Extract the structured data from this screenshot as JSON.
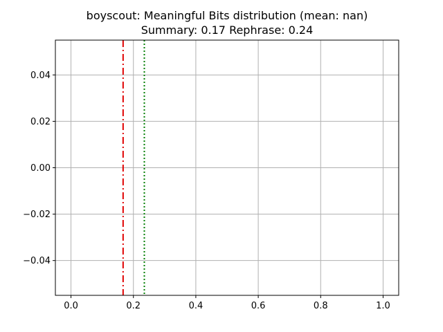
{
  "chart_data": {
    "type": "line",
    "title": "boyscout: Meaningful Bits distribution (mean: nan)",
    "subtitle": "Summary: 0.17 Rephrase: 0.24",
    "xlabel": "",
    "ylabel": "",
    "xlim": [
      -0.05,
      1.05
    ],
    "ylim": [
      -0.055,
      0.055
    ],
    "grid": true,
    "x_ticks": [
      {
        "value": 0.0,
        "label": "0.0"
      },
      {
        "value": 0.2,
        "label": "0.2"
      },
      {
        "value": 0.4,
        "label": "0.4"
      },
      {
        "value": 0.6,
        "label": "0.6"
      },
      {
        "value": 0.8,
        "label": "0.8"
      },
      {
        "value": 1.0,
        "label": "1.0"
      }
    ],
    "y_ticks": [
      {
        "value": -0.04,
        "label": "−0.04"
      },
      {
        "value": -0.02,
        "label": "−0.02"
      },
      {
        "value": 0.0,
        "label": "0.00"
      },
      {
        "value": 0.02,
        "label": "0.02"
      },
      {
        "value": 0.04,
        "label": "0.04"
      }
    ],
    "vlines": [
      {
        "x": 0.167,
        "color": "#e00000",
        "style": "dashdot"
      },
      {
        "x": 0.235,
        "color": "#008000",
        "style": "dotted"
      }
    ],
    "series": []
  },
  "colors": {
    "grid": "#b0b0b0",
    "axes": "#000000",
    "summary_line": "#e00000",
    "rephrase_line": "#008000"
  }
}
